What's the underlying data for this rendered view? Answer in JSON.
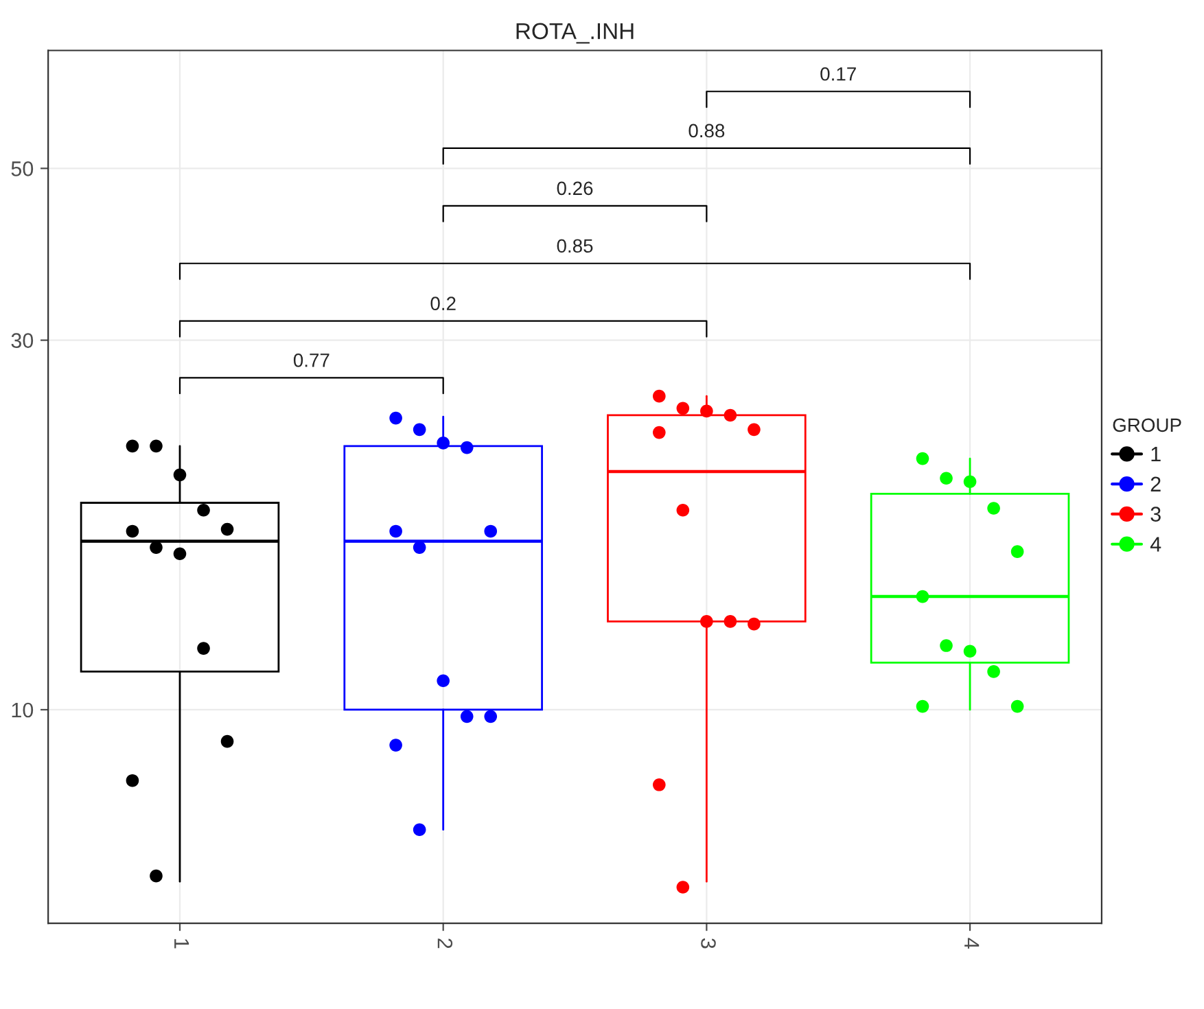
{
  "chart_data": {
    "type": "box",
    "title": "ROTA_.INH",
    "legend_title": "GROUP",
    "categories": [
      "1",
      "2",
      "3",
      "4"
    ],
    "colors": [
      "#000000",
      "#0000ff",
      "#ff0000",
      "#00ff00"
    ],
    "boxes": [
      {
        "low": 6.0,
        "q1": 11.2,
        "median": 16.5,
        "q3": 18.5,
        "high": 21.9
      },
      {
        "low": 7.0,
        "q1": 10.0,
        "median": 16.5,
        "q3": 21.9,
        "high": 23.9
      },
      {
        "low": 6.0,
        "q1": 13.0,
        "median": 20.3,
        "q3": 24.0,
        "high": 25.4
      },
      {
        "low": 10.0,
        "q1": 11.5,
        "median": 14.0,
        "q3": 19.0,
        "high": 21.1
      }
    ],
    "series": [
      {
        "type": "scatter",
        "name": "1",
        "color": "#000000",
        "x": [
          "1",
          "1",
          "1",
          "1",
          "1",
          "1",
          "1",
          "1",
          "1",
          "1",
          "1",
          "1"
        ],
        "values": [
          21.9,
          21.9,
          20.1,
          18.1,
          17.1,
          17.0,
          16.2,
          15.9,
          12.0,
          9.1,
          8.1,
          6.1
        ]
      },
      {
        "type": "scatter",
        "name": "2",
        "color": "#0000ff",
        "x": [
          "2",
          "2",
          "2",
          "2",
          "2",
          "2",
          "2",
          "2",
          "2",
          "2",
          "2",
          "2"
        ],
        "values": [
          23.8,
          23.0,
          22.1,
          21.8,
          17.0,
          17.0,
          16.2,
          10.9,
          9.8,
          9.8,
          9.0,
          7.0
        ]
      },
      {
        "type": "scatter",
        "name": "3",
        "color": "#ff0000",
        "x": [
          "3",
          "3",
          "3",
          "3",
          "3",
          "3",
          "3",
          "3",
          "3",
          "3",
          "3",
          "3"
        ],
        "values": [
          25.4,
          24.5,
          24.3,
          24.0,
          23.0,
          22.8,
          18.1,
          13.0,
          13.0,
          12.9,
          8.0,
          5.9
        ]
      },
      {
        "type": "scatter",
        "name": "4",
        "color": "#00ff00",
        "x": [
          "4",
          "4",
          "4",
          "4",
          "4",
          "4",
          "4",
          "4",
          "4",
          "4",
          "4"
        ],
        "values": [
          21.1,
          19.9,
          19.7,
          18.2,
          16.0,
          14.0,
          12.1,
          11.9,
          11.2,
          10.1,
          10.1
        ]
      }
    ],
    "annotations": [
      "0.77",
      "0.2",
      "0.85",
      "0.26",
      "0.88",
      "0.17"
    ],
    "log": true,
    "ylim": [
      5.3,
      71
    ],
    "yticks": [
      10,
      30,
      50
    ],
    "grid": true,
    "legend": "right",
    "marker": "circle"
  }
}
